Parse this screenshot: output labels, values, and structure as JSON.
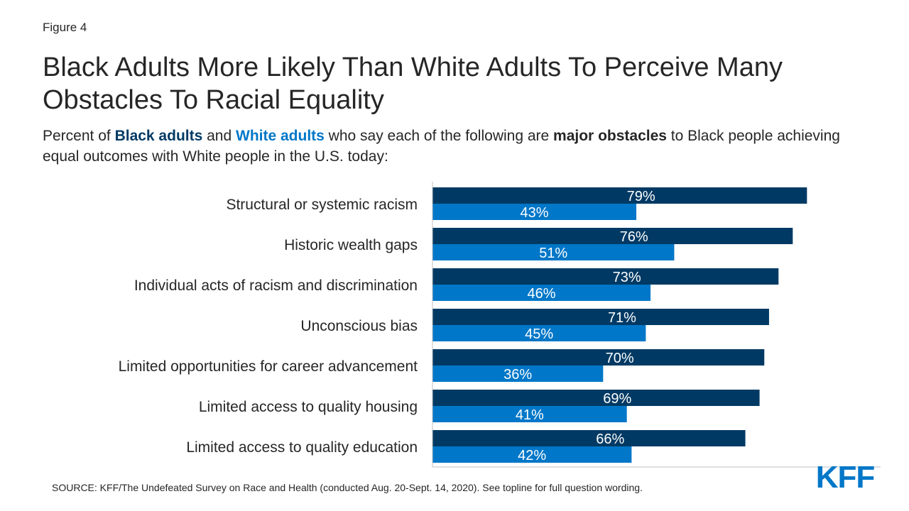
{
  "figure_label": "Figure 4",
  "title": "Black Adults More Likely Than White Adults To Perceive Many Obstacles To Racial Equality",
  "subtitle": {
    "part1": "Percent of ",
    "black_label": "Black adults",
    "part2": " and ",
    "white_label": "White adults",
    "part3": " who say each of the following are ",
    "emphasis": "major obstacles",
    "part4": " to Black people achieving equal outcomes with White people in the U.S. today:"
  },
  "source": "SOURCE: KFF/The Undefeated Survey on Race and Health (conducted Aug. 20-Sept. 14, 2020). See topline for full question wording.",
  "logo_text": "KFF",
  "colors": {
    "black_adults": "#003a64",
    "white_adults": "#0077c8",
    "text": "#262626"
  },
  "chart_data": {
    "type": "bar",
    "orientation": "horizontal",
    "categories": [
      "Structural or systemic racism",
      "Historic wealth gaps",
      "Individual acts of racism and discrimination",
      "Unconscious bias",
      "Limited opportunities for career advancement",
      "Limited access to quality housing",
      "Limited access to quality education"
    ],
    "series": [
      {
        "name": "Black adults",
        "values": [
          79,
          76,
          73,
          71,
          70,
          69,
          66
        ],
        "labels": [
          "79%",
          "76%",
          "73%",
          "71%",
          "70%",
          "69%",
          "66%"
        ],
        "color": "#003a64"
      },
      {
        "name": "White adults",
        "values": [
          43,
          51,
          46,
          45,
          36,
          41,
          42
        ],
        "labels": [
          "43%",
          "51%",
          "46%",
          "45%",
          "36%",
          "41%",
          "42%"
        ],
        "color": "#0077c8"
      }
    ],
    "xlim": [
      0,
      100
    ],
    "grid": false,
    "axis_lines": "left-baseline-only"
  }
}
